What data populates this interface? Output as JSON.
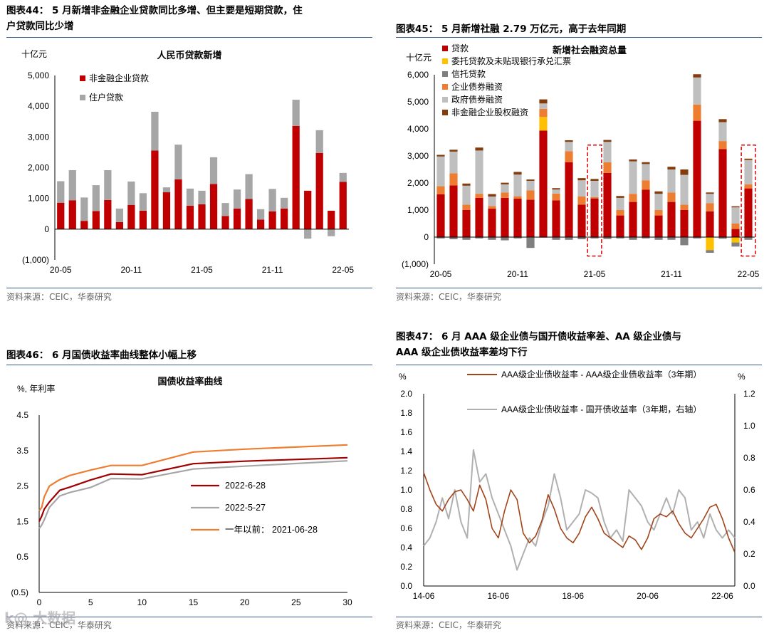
{
  "source_text": "资料来源：CEIC，华泰研究",
  "watermark": "k@ 大数据",
  "colors": {
    "red": "#c00000",
    "gray": "#a6a6a6",
    "yellow": "#ffc000",
    "darkgray": "#7f7f7f",
    "orange": "#ed7d31",
    "lightgray": "#bfbfbf",
    "brown": "#843c0c",
    "darkred": "#a00000",
    "lgray2": "#a6a6a6",
    "orange2": "#ed7d31",
    "brown2": "#a0441a",
    "gray2": "#b0b0b0"
  },
  "panels": {
    "p44": {
      "title_line1": "图表44：  5 月新增非金融企业贷款同比多增、但主要是短期贷款，住",
      "title_line2": "户贷款同比少增"
    },
    "p45": {
      "title": "图表45：  5 月新增社融 2.79 万亿元，高于去年同期"
    },
    "p46": {
      "title": "图表46：  6 月国债收益率曲线整体小幅上移"
    },
    "p47": {
      "title_line1": "图表47：  6 月  AAA  级企业债与国开债收益率差、AA  级企业债与",
      "title_line2": "AAA 级企业债收益率差均下行"
    }
  },
  "chart_data": [
    {
      "id": "c44",
      "type": "bar",
      "stacked": true,
      "title": "人民币贷款新增",
      "ylabel": "十亿元",
      "ylim": [
        -1000,
        5000
      ],
      "yticks": [
        -1000,
        0,
        1000,
        2000,
        3000,
        4000,
        5000
      ],
      "ytick_labels": [
        "(1,000)",
        "0",
        "1,000",
        "2,000",
        "3,000",
        "4,000",
        "5,000"
      ],
      "xtick_labels": [
        "20-05",
        "20-11",
        "21-05",
        "21-11",
        "22-05"
      ],
      "xtick_index": [
        0,
        6,
        12,
        18,
        24
      ],
      "series": [
        {
          "name": "非金融企业贷款",
          "color": "#c00000",
          "values": [
            860,
            940,
            270,
            590,
            950,
            230,
            790,
            600,
            2560,
            1200,
            1620,
            760,
            810,
            1470,
            430,
            670,
            980,
            310,
            580,
            670,
            3360,
            1250,
            2480,
            600,
            1540
          ]
        },
        {
          "name": "住户贷款",
          "color": "#a6a6a6",
          "values": [
            700,
            980,
            760,
            840,
            970,
            440,
            760,
            570,
            1260,
            160,
            1130,
            560,
            440,
            870,
            420,
            620,
            810,
            340,
            730,
            350,
            850,
            -310,
            740,
            -230,
            290
          ]
        }
      ]
    },
    {
      "id": "c45",
      "type": "bar",
      "stacked": true,
      "title": "新增社会融资总量",
      "ylabel": "十亿元",
      "ylim": [
        -1000,
        6000
      ],
      "yticks": [
        -1000,
        0,
        1000,
        2000,
        3000,
        4000,
        5000,
        6000
      ],
      "ytick_labels": [
        "(1,000)",
        "0",
        "1,000",
        "2,000",
        "3,000",
        "4,000",
        "5,000",
        "6,000"
      ],
      "xtick_labels": [
        "20-05",
        "20-11",
        "21-05",
        "21-11",
        "22-05"
      ],
      "xtick_index": [
        0,
        6,
        12,
        18,
        24
      ],
      "highlight_index": [
        12,
        24
      ],
      "series": [
        {
          "name": "贷款",
          "color": "#c00000",
          "values": [
            1580,
            1910,
            1000,
            1450,
            1050,
            1450,
            1420,
            1380,
            3940,
            1360,
            2770,
            1200,
            1430,
            2370,
            800,
            1300,
            1750,
            800,
            1300,
            1000,
            4300,
            950,
            3250,
            300,
            1800
          ]
        },
        {
          "name": "委托贷款及未贴现银行承兑汇票",
          "color": "#ffc000",
          "values": [
            0,
            0,
            0,
            0,
            0,
            0,
            0,
            0,
            500,
            0,
            0,
            0,
            0,
            0,
            0,
            0,
            0,
            0,
            0,
            0,
            0,
            -480,
            0,
            -200,
            0
          ]
        },
        {
          "name": "信托贷款",
          "color": "#7f7f7f",
          "values": [
            -50,
            -80,
            -100,
            -50,
            -100,
            -120,
            -50,
            -400,
            -20,
            -100,
            -100,
            -80,
            -50,
            -70,
            -50,
            -100,
            -50,
            -100,
            -100,
            -300,
            -50,
            -100,
            -60,
            -150,
            -100
          ]
        },
        {
          "name": "企业债券融资",
          "color": "#ed7d31",
          "values": [
            300,
            450,
            200,
            150,
            100,
            200,
            90,
            350,
            300,
            250,
            400,
            300,
            50,
            400,
            200,
            300,
            350,
            200,
            350,
            200,
            600,
            300,
            300,
            200,
            150
          ]
        },
        {
          "name": "政府债券融资",
          "color": "#bfbfbf",
          "values": [
            1100,
            800,
            700,
            1600,
            350,
            300,
            800,
            350,
            200,
            150,
            350,
            600,
            600,
            750,
            450,
            1200,
            600,
            600,
            850,
            1100,
            1000,
            350,
            700,
            600,
            900
          ]
        },
        {
          "name": "非金融企业股权融资",
          "color": "#843c0c",
          "values": [
            60,
            70,
            80,
            110,
            90,
            60,
            100,
            50,
            150,
            50,
            60,
            80,
            70,
            70,
            70,
            70,
            70,
            90,
            100,
            200,
            120,
            50,
            110,
            40,
            50
          ]
        }
      ]
    },
    {
      "id": "c46",
      "type": "line",
      "title": "国债收益率曲线",
      "ylabel": "%, 年利率",
      "ylim": [
        -0.5,
        4.5
      ],
      "xlim": [
        0,
        30
      ],
      "yticks": [
        -0.5,
        0.5,
        1.5,
        2.5,
        3.5,
        4.5
      ],
      "ytick_labels": [
        "(0.5)",
        "0.5",
        "1.5",
        "2.5",
        "3.5",
        "4.5"
      ],
      "xticks": [
        0,
        5,
        10,
        15,
        20,
        25,
        30
      ],
      "xtick_labels": [
        "0",
        "5",
        "10",
        "15",
        "20",
        "25",
        "30"
      ],
      "x": [
        0,
        0.25,
        0.5,
        1,
        2,
        3,
        5,
        7,
        10,
        15,
        20,
        30
      ],
      "series": [
        {
          "name": "2022-6-28",
          "color": "#a00000",
          "values": [
            1.5,
            1.65,
            1.85,
            2.05,
            2.38,
            2.47,
            2.67,
            2.84,
            2.82,
            3.13,
            3.2,
            3.3
          ]
        },
        {
          "name": "2022-5-27",
          "color": "#a6a6a6",
          "values": [
            1.3,
            1.4,
            1.55,
            1.9,
            2.22,
            2.32,
            2.46,
            2.71,
            2.7,
            2.98,
            3.06,
            3.21
          ]
        },
        {
          "name": "一年以前：  2021-06-28",
          "color": "#ed7d31",
          "values": [
            1.8,
            1.9,
            2.2,
            2.5,
            2.68,
            2.8,
            2.95,
            3.08,
            3.08,
            3.46,
            3.54,
            3.66
          ]
        }
      ]
    },
    {
      "id": "c47",
      "type": "line",
      "dual_axis": true,
      "ylabel_left": "%",
      "ylabel_right": "%",
      "ylim_left": [
        0,
        2.0
      ],
      "ylim_right": [
        0,
        1.2
      ],
      "yticks_left": [
        0,
        0.2,
        0.4,
        0.6,
        0.8,
        1.0,
        1.2,
        1.4,
        1.6,
        1.8,
        2.0
      ],
      "ytick_labels_left": [
        "0.0",
        "0.2",
        "0.4",
        "0.6",
        "0.8",
        "1.0",
        "1.2",
        "1.4",
        "1.6",
        "1.8",
        "2.0"
      ],
      "yticks_right": [
        0,
        0.2,
        0.4,
        0.6,
        0.8,
        1.0,
        1.2
      ],
      "ytick_labels_right": [
        "0.0",
        "0.2",
        "0.4",
        "0.6",
        "0.8",
        "1.0",
        "1.2"
      ],
      "xlim": [
        0,
        100
      ],
      "xticks": [
        0,
        24,
        48,
        72,
        96
      ],
      "xtick_labels": [
        "14-06",
        "16-06",
        "18-06",
        "20-06",
        "22-06"
      ],
      "x": [
        0,
        2,
        4,
        6,
        8,
        10,
        12,
        14,
        16,
        18,
        20,
        22,
        24,
        26,
        28,
        30,
        32,
        34,
        36,
        38,
        40,
        42,
        44,
        46,
        48,
        50,
        52,
        54,
        56,
        58,
        60,
        62,
        64,
        66,
        68,
        70,
        72,
        74,
        76,
        78,
        80,
        82,
        84,
        86,
        88,
        90,
        92,
        94,
        96,
        98,
        100
      ],
      "series": [
        {
          "name": "AAA级企业债收益率 - AAA级企业债收益率（3年期）",
          "axis": "left",
          "color": "#a0441a",
          "values": [
            1.18,
            1.0,
            0.85,
            0.78,
            0.9,
            0.98,
            1.0,
            0.9,
            0.78,
            1.05,
            0.9,
            0.6,
            0.5,
            0.78,
            1.0,
            0.9,
            0.55,
            0.45,
            0.52,
            0.68,
            0.95,
            0.8,
            0.6,
            0.5,
            0.45,
            0.55,
            0.72,
            0.82,
            0.7,
            0.55,
            0.5,
            0.45,
            0.4,
            0.52,
            0.48,
            0.38,
            0.5,
            0.7,
            0.75,
            0.72,
            0.78,
            0.65,
            0.55,
            0.5,
            0.6,
            0.7,
            0.82,
            0.85,
            0.7,
            0.5,
            0.35
          ]
        },
        {
          "name": "AAA级企业债收益率 - 国开债收益率（3年期，右轴）",
          "axis": "right",
          "color": "#b0b0b0",
          "values": [
            0.25,
            0.3,
            0.4,
            0.55,
            0.42,
            0.6,
            0.4,
            0.3,
            0.85,
            0.65,
            0.7,
            0.55,
            0.45,
            0.35,
            0.25,
            0.1,
            0.2,
            0.3,
            0.25,
            0.4,
            0.5,
            0.7,
            0.55,
            0.35,
            0.4,
            0.45,
            0.6,
            0.58,
            0.55,
            0.4,
            0.3,
            0.35,
            0.28,
            0.6,
            0.55,
            0.5,
            0.4,
            0.35,
            0.45,
            0.55,
            0.45,
            0.6,
            0.55,
            0.35,
            0.4,
            0.3,
            0.45,
            0.35,
            0.3,
            0.35,
            0.3
          ]
        }
      ]
    }
  ]
}
